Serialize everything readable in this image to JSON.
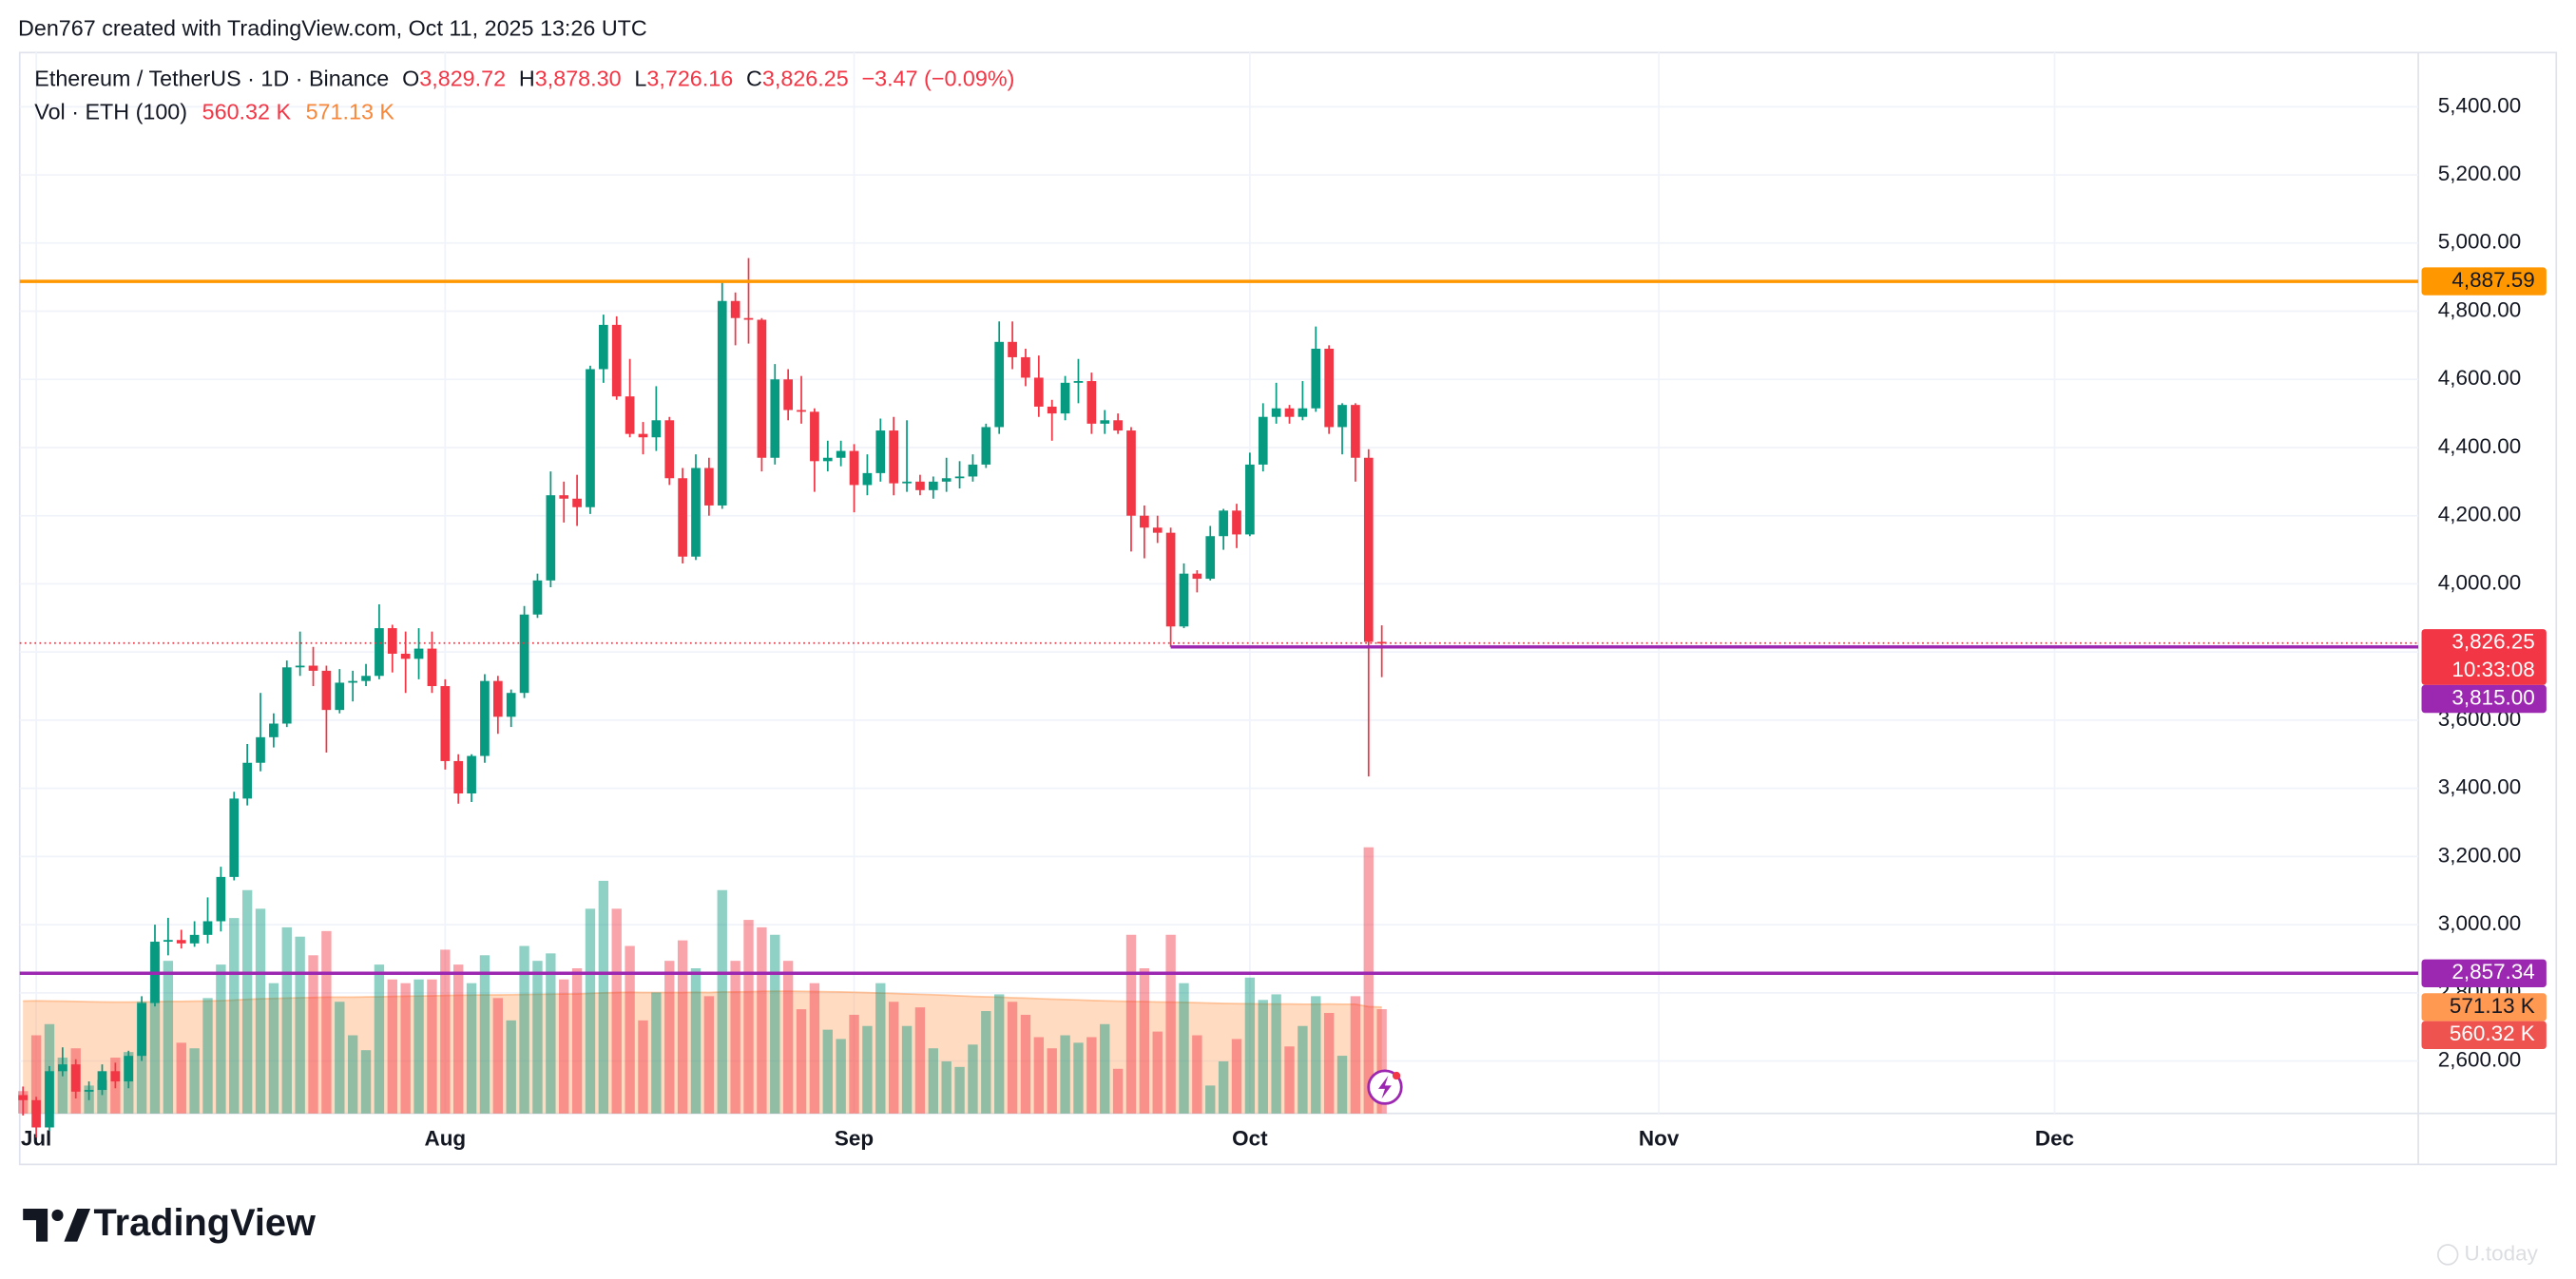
{
  "watermark": "Den767 created with TradingView.com, Oct 11, 2025 13:26 UTC",
  "brand": "TradingView",
  "corner_mark": "U.today",
  "chart_data": {
    "type": "candlestick",
    "legend": {
      "symbol": "Ethereum / TetherUS · 1D · Binance",
      "o_label": "O",
      "o": "3,829.72",
      "h_label": "H",
      "h": "3,878.30",
      "l_label": "L",
      "l": "3,726.16",
      "c_label": "C",
      "c": "3,826.25",
      "change": "−3.47 (−0.09%)",
      "volume_title": "Vol · ETH (100)"
    },
    "x_labels": [
      "Jul",
      "Aug",
      "Sep",
      "Oct",
      "Nov",
      "Dec"
    ],
    "open": [
      2500,
      2485,
      2405,
      2570,
      2590,
      2510,
      2515,
      2570,
      2540,
      2615,
      2770,
      2950,
      2955,
      2945,
      2970,
      3010,
      3140,
      3370,
      3475,
      3550,
      3590,
      3755,
      3760,
      3745,
      3630,
      3710,
      3715,
      3730,
      3870,
      3795,
      3780,
      3810,
      3700,
      3480,
      3385,
      3495,
      3715,
      3610,
      3680,
      3910,
      4010,
      4260,
      4250,
      4225,
      4630,
      4760,
      4550,
      4440,
      4430,
      4480,
      4310,
      4080,
      4340,
      4230,
      4830,
      4780,
      4775,
      4370,
      4600,
      4510,
      4505,
      4360,
      4370,
      4390,
      4290,
      4325,
      4450,
      4295,
      4300,
      4275,
      4300,
      4310,
      4315,
      4350,
      4460,
      4710,
      4665,
      4605,
      4520,
      4500,
      4590,
      4595,
      4470,
      4480,
      4450,
      4200,
      4165,
      4150,
      3875,
      4030,
      4015,
      4140,
      4215,
      4145,
      4350,
      4490,
      4515,
      4490,
      4515,
      4690,
      4460,
      4525,
      4370,
      3829.72
    ],
    "high": [
      2525,
      2495,
      2585,
      2640,
      2605,
      2540,
      2590,
      2595,
      2630,
      2790,
      3000,
      3020,
      2985,
      3010,
      3080,
      3170,
      3390,
      3530,
      3680,
      3620,
      3775,
      3860,
      3815,
      3760,
      3750,
      3745,
      3765,
      3940,
      3880,
      3860,
      3870,
      3860,
      3720,
      3500,
      3500,
      3735,
      3730,
      3690,
      3935,
      4030,
      4330,
      4300,
      4320,
      4640,
      4790,
      4785,
      4660,
      4475,
      4580,
      4490,
      4340,
      4380,
      4370,
      4887,
      4855,
      4956,
      4780,
      4645,
      4630,
      4610,
      4515,
      4420,
      4420,
      4410,
      4380,
      4485,
      4490,
      4480,
      4320,
      4315,
      4370,
      4360,
      4380,
      4470,
      4770,
      4770,
      4690,
      4670,
      4540,
      4610,
      4660,
      4620,
      4510,
      4500,
      4460,
      4230,
      4200,
      4165,
      4060,
      4040,
      4170,
      4220,
      4235,
      4385,
      4530,
      4590,
      4525,
      4595,
      4755,
      4700,
      4530,
      4530,
      4395,
      3878.3
    ],
    "low": [
      2440,
      2375,
      2395,
      2555,
      2490,
      2485,
      2500,
      2520,
      2520,
      2600,
      2760,
      2910,
      2930,
      2935,
      2945,
      2980,
      3130,
      3350,
      3450,
      3520,
      3580,
      3730,
      3700,
      3505,
      3620,
      3655,
      3700,
      3720,
      3740,
      3680,
      3720,
      3680,
      3455,
      3355,
      3360,
      3475,
      3560,
      3580,
      3665,
      3900,
      3990,
      4180,
      4170,
      4205,
      4590,
      4540,
      4430,
      4380,
      4390,
      4290,
      4060,
      4070,
      4200,
      4220,
      4700,
      4705,
      4330,
      4350,
      4480,
      4470,
      4270,
      4330,
      4345,
      4210,
      4260,
      4300,
      4260,
      4270,
      4260,
      4250,
      4270,
      4280,
      4300,
      4340,
      4440,
      4630,
      4580,
      4490,
      4420,
      4480,
      4530,
      4440,
      4440,
      4440,
      4095,
      4075,
      4120,
      3815,
      3870,
      3975,
      4010,
      4100,
      4105,
      4140,
      4330,
      4470,
      4470,
      4480,
      4505,
      4440,
      4380,
      4300,
      3435,
      3726.16
    ],
    "close": [
      2485,
      2405,
      2570,
      2590,
      2510,
      2515,
      2570,
      2540,
      2615,
      2770,
      2950,
      2955,
      2945,
      2970,
      3010,
      3140,
      3370,
      3475,
      3550,
      3590,
      3755,
      3760,
      3745,
      3630,
      3710,
      3715,
      3730,
      3870,
      3795,
      3780,
      3810,
      3700,
      3480,
      3385,
      3495,
      3715,
      3610,
      3680,
      3910,
      4010,
      4260,
      4250,
      4225,
      4630,
      4760,
      4550,
      4440,
      4430,
      4480,
      4310,
      4080,
      4340,
      4230,
      4830,
      4780,
      4775,
      4370,
      4600,
      4510,
      4505,
      4360,
      4370,
      4390,
      4290,
      4325,
      4450,
      4295,
      4300,
      4275,
      4300,
      4310,
      4315,
      4350,
      4460,
      4710,
      4665,
      4605,
      4520,
      4500,
      4590,
      4595,
      4470,
      4480,
      4450,
      4200,
      4165,
      4150,
      3875,
      4030,
      4015,
      4140,
      4215,
      4145,
      4350,
      4490,
      4515,
      4490,
      4515,
      4690,
      4460,
      4525,
      4370,
      3829.72,
      3826.25
    ],
    "volume": [
      120000,
      420000,
      480000,
      300000,
      350000,
      150000,
      180000,
      300000,
      330000,
      600000,
      900000,
      820000,
      380000,
      350000,
      620000,
      800000,
      1050000,
      1200000,
      1100000,
      700000,
      1000000,
      950000,
      850000,
      980000,
      600000,
      420000,
      340000,
      800000,
      720000,
      700000,
      720000,
      720000,
      880000,
      800000,
      700000,
      850000,
      620000,
      500000,
      900000,
      820000,
      860000,
      720000,
      780000,
      1100000,
      1250000,
      1100000,
      900000,
      500000,
      650000,
      820000,
      930000,
      780000,
      630000,
      1200000,
      820000,
      1040000,
      1000000,
      960000,
      820000,
      560000,
      700000,
      450000,
      400000,
      530000,
      470000,
      700000,
      600000,
      470000,
      570000,
      350000,
      280000,
      250000,
      370000,
      550000,
      640000,
      600000,
      530000,
      410000,
      350000,
      420000,
      380000,
      410000,
      480000,
      240000,
      960000,
      780000,
      440000,
      960000,
      700000,
      420000,
      150000,
      280000,
      400000,
      730000,
      610000,
      640000,
      360000,
      470000,
      630000,
      540000,
      310000,
      630000,
      1430000,
      560320
    ],
    "volume_ma": [
      604000,
      605000,
      604000,
      603000,
      602000,
      600000,
      599000,
      598000,
      598000,
      599000,
      600000,
      602000,
      602000,
      603000,
      604000,
      606000,
      609000,
      613000,
      616000,
      618000,
      620000,
      622000,
      623000,
      625000,
      625000,
      625000,
      626000,
      627000,
      629000,
      630000,
      631000,
      632000,
      634000,
      635000,
      636000,
      637000,
      637000,
      638000,
      639000,
      640000,
      641000,
      642000,
      642000,
      645000,
      648000,
      650000,
      651000,
      650000,
      650000,
      650000,
      650000,
      651000,
      650000,
      653000,
      653000,
      654000,
      656000,
      657000,
      657000,
      656000,
      655000,
      654000,
      653000,
      651000,
      649000,
      647000,
      645000,
      642000,
      640000,
      638000,
      635000,
      632000,
      629000,
      627000,
      625000,
      622000,
      620000,
      617000,
      614000,
      612000,
      610000,
      607000,
      605000,
      603000,
      602000,
      601000,
      599000,
      598000,
      597000,
      595000,
      593000,
      591000,
      590000,
      589000,
      588000,
      588000,
      588000,
      587000,
      587000,
      588000,
      587000,
      587000,
      574000,
      571130
    ],
    "volume_last_label": "560.32 K",
    "volume_ma_last_label": "571.13 K",
    "up_color": "#089981",
    "down_color": "#f23645",
    "ma_color": "#ff9850",
    "ylim": [
      2446,
      5559
    ],
    "yticks": [
      {
        "value": 2600,
        "label": "2,600.00"
      },
      {
        "value": 2800,
        "label": "2,800.00"
      },
      {
        "value": 3000,
        "label": "3,000.00"
      },
      {
        "value": 3200,
        "label": "3,200.00"
      },
      {
        "value": 3400,
        "label": "3,400.00"
      },
      {
        "value": 3600,
        "label": "3,600.00"
      },
      {
        "value": 3800,
        "label": "3,800.00"
      },
      {
        "value": 4000,
        "label": "4,000.00"
      },
      {
        "value": 4200,
        "label": "4,200.00"
      },
      {
        "value": 4400,
        "label": "4,400.00"
      },
      {
        "value": 4600,
        "label": "4,600.00"
      },
      {
        "value": 4800,
        "label": "4,800.00"
      },
      {
        "value": 5000,
        "label": "5,000.00"
      },
      {
        "value": 5200,
        "label": "5,200.00"
      },
      {
        "value": 5400,
        "label": "5,400.00"
      }
    ],
    "volume_lim": [
      0,
      5700000
    ],
    "hlines": [
      {
        "value": 4887.59,
        "label": "4,887.59",
        "color": "#ff9800"
      },
      {
        "value": 3815,
        "label": "3,815.00",
        "color": "#9c27b0"
      },
      {
        "value": 2857.34,
        "label": "2,857.34",
        "color": "#9c27b0"
      }
    ],
    "last_price": {
      "value": 3826.25,
      "label": "3,826.25",
      "countdown": "10:33:08"
    },
    "grid": true
  }
}
